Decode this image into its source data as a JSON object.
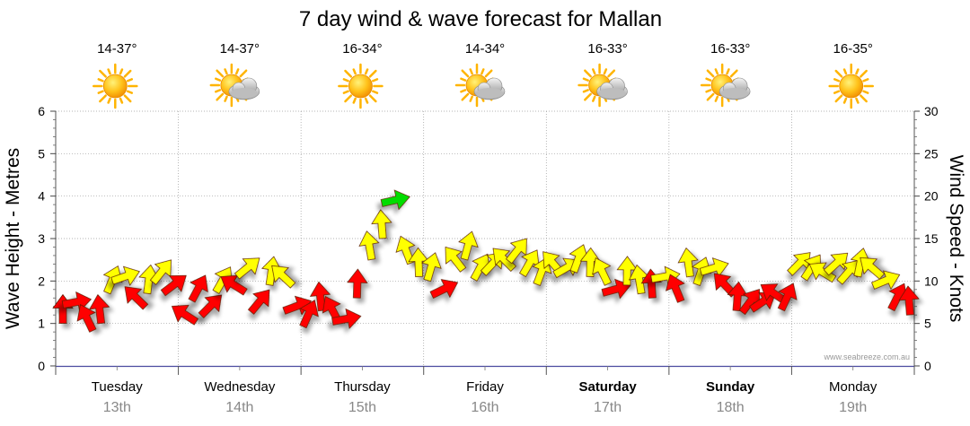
{
  "chart_data": {
    "type": "scatter",
    "title": "7 day wind & wave forecast for Mallan",
    "ylabel_left": "Wave Height - Metres",
    "ylabel_right": "Wind Speed - Knots",
    "ylim_left": [
      0,
      6
    ],
    "ylim_right": [
      0,
      30
    ],
    "yticks_left": [
      "0",
      "1",
      "2",
      "3",
      "4",
      "5",
      "6"
    ],
    "yticks_right": [
      "0",
      "5",
      "10",
      "15",
      "20",
      "25",
      "30"
    ],
    "days": [
      {
        "name": "Tuesday",
        "date": "13th",
        "temp": "14-37°",
        "icon": "sun-icon",
        "weekend": false
      },
      {
        "name": "Wednesday",
        "date": "14th",
        "temp": "14-37°",
        "icon": "sun-cloud-icon",
        "weekend": false
      },
      {
        "name": "Thursday",
        "date": "15th",
        "temp": "16-34°",
        "icon": "sun-icon",
        "weekend": false
      },
      {
        "name": "Friday",
        "date": "16th",
        "temp": "14-34°",
        "icon": "sun-cloud-icon",
        "weekend": false
      },
      {
        "name": "Saturday",
        "date": "17th",
        "temp": "16-33°",
        "icon": "sun-cloud-icon",
        "weekend": true
      },
      {
        "name": "Sunday",
        "date": "18th",
        "temp": "16-33°",
        "icon": "sun-cloud-icon",
        "weekend": true
      },
      {
        "name": "Monday",
        "date": "19th",
        "temp": "16-35°",
        "icon": "sun-icon",
        "weekend": false
      }
    ],
    "wind_series": {
      "name": "Wind Speed (knots)",
      "x_days": [
        0.0,
        0.1,
        0.2,
        0.3,
        0.4,
        0.5,
        0.6,
        0.7,
        0.8,
        0.9,
        1.0,
        1.1,
        1.2,
        1.3,
        1.4,
        1.5,
        1.6,
        1.7,
        1.8,
        1.9,
        2.0,
        2.1,
        2.2,
        2.3,
        2.4,
        2.5,
        2.6,
        2.7,
        2.8,
        2.9,
        3.0,
        3.1,
        3.2,
        3.3,
        3.4,
        3.5,
        3.6,
        3.7,
        3.8,
        3.9,
        4.0,
        4.1,
        4.2,
        4.3,
        4.4,
        4.5,
        4.6,
        4.7,
        4.8,
        4.9,
        5.0,
        5.1,
        5.2,
        5.3,
        5.4,
        5.5,
        5.6,
        5.7,
        5.8,
        5.9,
        6.0,
        6.1,
        6.2,
        6.3,
        6.4,
        6.5,
        6.6,
        6.7,
        6.8,
        6.9
      ],
      "knots": [
        6.5,
        7.5,
        5.5,
        6.5,
        10,
        10.5,
        8,
        10,
        11,
        9.5,
        6,
        9,
        7,
        10,
        9.5,
        11.5,
        7.5,
        11,
        10.5,
        7,
        6,
        8,
        6.5,
        5.5,
        9.5,
        14,
        16.5,
        19.5,
        13.5,
        12,
        11.5,
        9,
        12.5,
        14,
        11.5,
        12,
        12.5,
        13.5,
        12,
        11,
        12,
        11.5,
        12.5,
        12,
        11,
        9,
        11,
        10,
        9.5,
        10.5,
        9,
        12,
        11,
        11.5,
        9.5,
        8,
        7.5,
        7.5,
        8.5,
        8,
        12,
        11.5,
        11,
        12,
        11,
        12,
        11.5,
        10,
        8,
        7.5
      ],
      "color_bands": {
        "lt10": "#ff0000",
        "10_to_15": "#ffff00",
        "gte19": "#00dd00"
      }
    },
    "credit": "www.seabreeze.com.au"
  }
}
